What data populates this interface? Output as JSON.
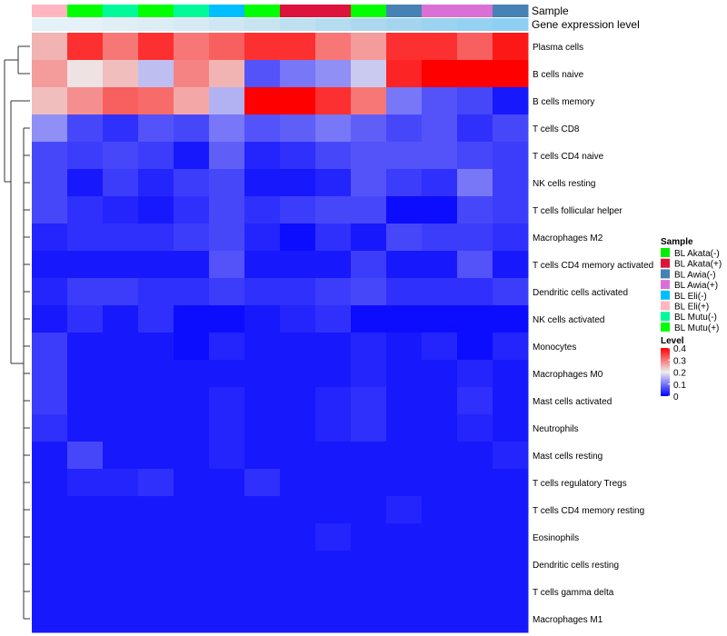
{
  "chart_data": {
    "type": "heatmap",
    "title": "",
    "top_annotation_labels": [
      "Sample",
      "Gene expression level"
    ],
    "samples": [
      "BL Eli(+)",
      "BL Mutu(+)",
      "BL Mutu(-)",
      "BL Mutu(+)",
      "BL Mutu(-)",
      "BL Eli(-)",
      "BL Mutu(+)",
      "BL Akata(+)",
      "BL Akata(+)",
      "BL Mutu(+)",
      "BL Awia(-)",
      "BL Awia(+)",
      "BL Awia(+)",
      "BL Awia(-)"
    ],
    "sample_colors": {
      "BL Akata(-)": "#00ee00",
      "BL Akata(+)": "#dc143c",
      "BL Awia(-)": "#4682b4",
      "BL Awia(+)": "#da70d6",
      "BL Eli(-)": "#00bfff",
      "BL Eli(+)": "#ffb6c1",
      "BL Mutu(-)": "#00fa9a",
      "BL Mutu(+)": "#00ff00"
    },
    "gene_expression_level_colors": [
      "#e4f1f6",
      "#e4f1f6",
      "#e0eff5",
      "#dcedf4",
      "#d6eaf3",
      "#cfe7f2",
      "#c8e4f1",
      "#bfe0f0",
      "#b5dcef",
      "#abd8ef",
      "#a3d5ef",
      "#9bd3f0",
      "#95d1f1",
      "#8fcff2"
    ],
    "rows": [
      "Plasma cells",
      "B cells naive",
      "B cells memory",
      "T cells CD8",
      "T cells CD4 naive",
      "NK cells resting",
      "T cells follicular helper",
      "Macrophages M2",
      "T cells CD4 memory activated",
      "Dendritic cells activated",
      "NK cells activated",
      "Monocytes",
      "Macrophages M0",
      "Mast cells activated",
      "Neutrophils",
      "Mast cells resting",
      "T cells regulatory  Tregs",
      "T cells CD4 memory resting",
      "Eosinophils",
      "Dendritic cells resting",
      "T cells gamma delta",
      "Macrophages M1"
    ],
    "values": [
      [
        0.25,
        0.36,
        0.3,
        0.36,
        0.3,
        0.32,
        0.36,
        0.36,
        0.3,
        0.27,
        0.36,
        0.36,
        0.32,
        0.38
      ],
      [
        0.27,
        0.21,
        0.24,
        0.16,
        0.29,
        0.25,
        0.07,
        0.1,
        0.12,
        0.17,
        0.37,
        0.4,
        0.4,
        0.4
      ],
      [
        0.24,
        0.28,
        0.32,
        0.31,
        0.26,
        0.15,
        0.4,
        0.4,
        0.36,
        0.3,
        0.1,
        0.07,
        0.06,
        0.02
      ],
      [
        0.12,
        0.06,
        0.04,
        0.07,
        0.06,
        0.1,
        0.07,
        0.08,
        0.1,
        0.08,
        0.06,
        0.07,
        0.04,
        0.06
      ],
      [
        0.06,
        0.05,
        0.06,
        0.05,
        0.02,
        0.08,
        0.03,
        0.04,
        0.06,
        0.07,
        0.07,
        0.07,
        0.06,
        0.05
      ],
      [
        0.06,
        0.02,
        0.05,
        0.03,
        0.05,
        0.06,
        0.02,
        0.02,
        0.03,
        0.07,
        0.05,
        0.04,
        0.1,
        0.05
      ],
      [
        0.06,
        0.04,
        0.03,
        0.02,
        0.04,
        0.06,
        0.04,
        0.05,
        0.06,
        0.06,
        0.01,
        0.01,
        0.06,
        0.05
      ],
      [
        0.03,
        0.04,
        0.04,
        0.04,
        0.05,
        0.06,
        0.03,
        0.01,
        0.04,
        0.02,
        0.06,
        0.05,
        0.05,
        0.04
      ],
      [
        0.02,
        0.02,
        0.02,
        0.02,
        0.02,
        0.07,
        0.02,
        0.02,
        0.02,
        0.05,
        0.02,
        0.02,
        0.07,
        0.02
      ],
      [
        0.03,
        0.05,
        0.05,
        0.04,
        0.04,
        0.05,
        0.04,
        0.04,
        0.05,
        0.06,
        0.04,
        0.04,
        0.04,
        0.05
      ],
      [
        0.02,
        0.04,
        0.02,
        0.04,
        0.01,
        0.01,
        0.02,
        0.03,
        0.04,
        0.01,
        0.01,
        0.01,
        0.01,
        0.01
      ],
      [
        0.05,
        0.02,
        0.02,
        0.02,
        0.01,
        0.03,
        0.02,
        0.02,
        0.02,
        0.03,
        0.02,
        0.03,
        0.01,
        0.03
      ],
      [
        0.05,
        0.02,
        0.02,
        0.02,
        0.02,
        0.02,
        0.02,
        0.02,
        0.02,
        0.03,
        0.02,
        0.02,
        0.03,
        0.02
      ],
      [
        0.05,
        0.02,
        0.02,
        0.02,
        0.02,
        0.03,
        0.02,
        0.02,
        0.03,
        0.04,
        0.02,
        0.02,
        0.04,
        0.02
      ],
      [
        0.04,
        0.02,
        0.02,
        0.02,
        0.02,
        0.03,
        0.02,
        0.02,
        0.03,
        0.04,
        0.02,
        0.02,
        0.03,
        0.02
      ],
      [
        0.02,
        0.06,
        0.02,
        0.02,
        0.02,
        0.03,
        0.02,
        0.02,
        0.02,
        0.02,
        0.02,
        0.02,
        0.02,
        0.03
      ],
      [
        0.02,
        0.03,
        0.03,
        0.04,
        0.02,
        0.02,
        0.04,
        0.02,
        0.02,
        0.02,
        0.02,
        0.02,
        0.02,
        0.02
      ],
      [
        0.02,
        0.02,
        0.02,
        0.02,
        0.02,
        0.02,
        0.02,
        0.02,
        0.02,
        0.02,
        0.03,
        0.02,
        0.02,
        0.02
      ],
      [
        0.02,
        0.02,
        0.02,
        0.02,
        0.02,
        0.02,
        0.02,
        0.02,
        0.03,
        0.02,
        0.02,
        0.02,
        0.02,
        0.02
      ],
      [
        0.02,
        0.02,
        0.02,
        0.02,
        0.02,
        0.02,
        0.02,
        0.02,
        0.02,
        0.02,
        0.02,
        0.02,
        0.02,
        0.02
      ],
      [
        0.02,
        0.02,
        0.02,
        0.02,
        0.02,
        0.02,
        0.02,
        0.02,
        0.02,
        0.02,
        0.02,
        0.02,
        0.02,
        0.02
      ],
      [
        0.02,
        0.02,
        0.02,
        0.02,
        0.02,
        0.02,
        0.02,
        0.02,
        0.02,
        0.02,
        0.02,
        0.02,
        0.02,
        0.02
      ]
    ],
    "color_scale": {
      "min": 0,
      "mid": 0.2,
      "max": 0.4,
      "low_color": "#0000ff",
      "mid_color": "#eeeeee",
      "high_color": "#ff0000"
    },
    "legend_sample": {
      "title": "Sample",
      "entries": [
        "BL Akata(-)",
        "BL Akata(+)",
        "BL Awia(-)",
        "BL Awia(+)",
        "BL Eli(-)",
        "BL Eli(+)",
        "BL Mutu(-)",
        "BL Mutu(+)"
      ]
    },
    "legend_level": {
      "title": "Level",
      "ticks": [
        "0.4",
        "0.3",
        "0.2",
        "0.1",
        "0"
      ]
    }
  }
}
